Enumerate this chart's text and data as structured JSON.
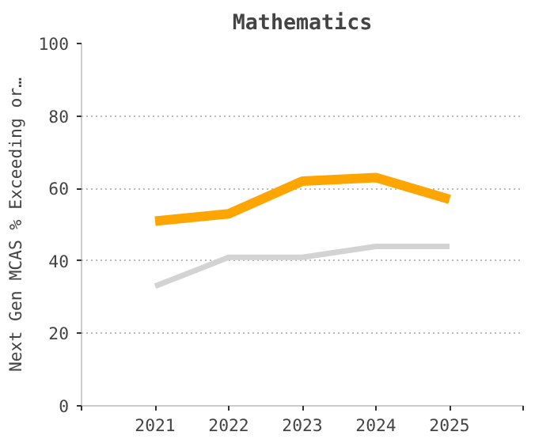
{
  "chart_data": {
    "type": "line",
    "title": "Mathematics",
    "ylabel": "Next Gen MCAS % Exceeding or…",
    "x": [
      2021,
      2022,
      2023,
      2024,
      2025
    ],
    "series": [
      {
        "color": "#ffa500",
        "values": [
          51,
          53,
          62,
          63,
          57
        ]
      },
      {
        "color": "#d3d3d3",
        "values": [
          33,
          41,
          41,
          44,
          44
        ]
      }
    ],
    "xlim": [
      2020,
      2026
    ],
    "xticks": [
      {
        "value": 2020,
        "label": null
      },
      2021,
      2022,
      2023,
      2024,
      2025,
      {
        "value": 2026,
        "label": null
      }
    ],
    "ylim": [
      0,
      100
    ],
    "yticks": [
      0,
      20,
      40,
      60,
      80,
      100
    ],
    "grid": "y",
    "marker": "none",
    "line_style": "solid"
  }
}
